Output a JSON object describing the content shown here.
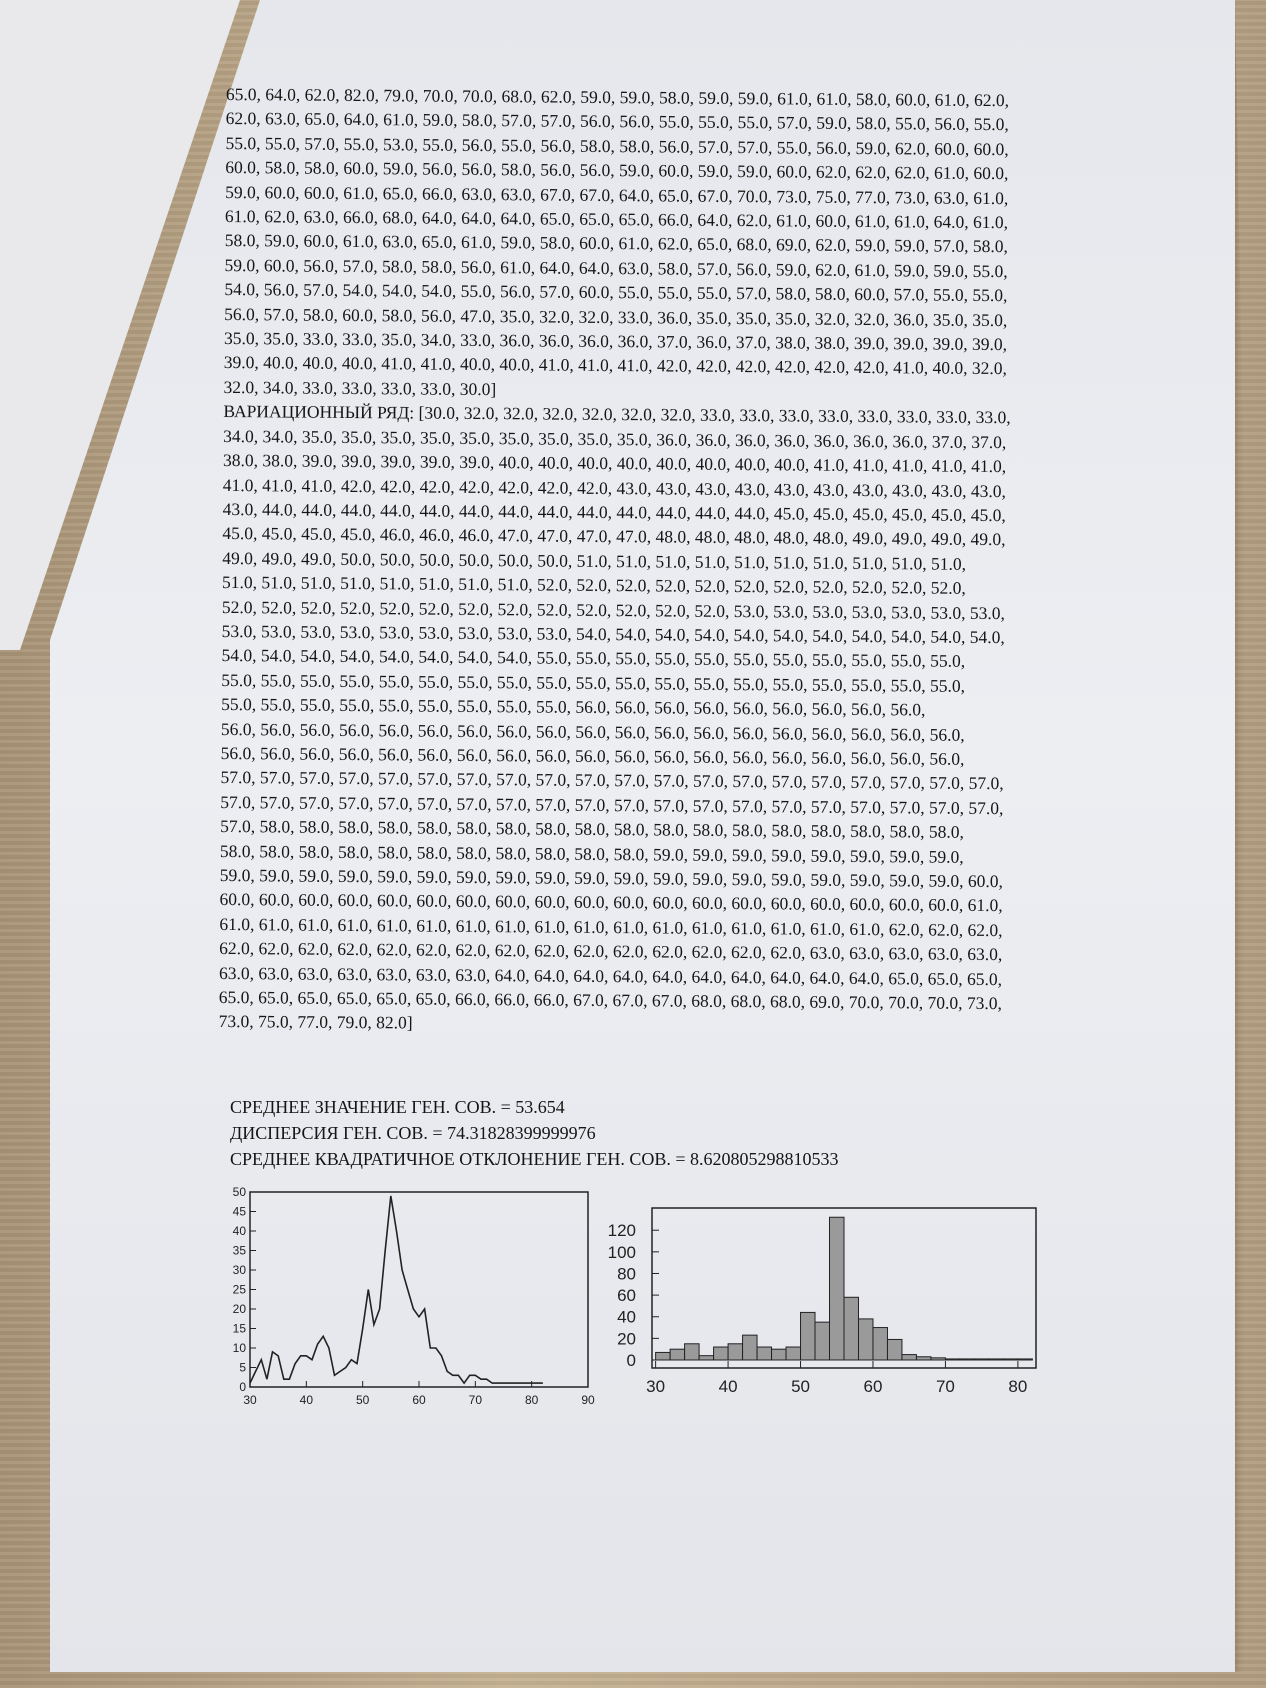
{
  "document": {
    "lines": [
      "65.0, 64.0, 62.0, 82.0, 79.0, 70.0, 70.0, 68.0, 62.0, 59.0, 59.0, 58.0, 59.0, 59.0, 61.0, 61.0, 58.0, 60.0, 61.0, 62.0,",
      "62.0, 63.0, 65.0, 64.0, 61.0, 59.0, 58.0, 57.0, 57.0, 56.0, 56.0, 55.0, 55.0, 55.0, 57.0, 59.0, 58.0, 55.0, 56.0, 55.0,",
      "55.0, 55.0, 57.0, 55.0, 53.0, 55.0, 56.0, 55.0, 56.0, 58.0, 58.0, 56.0, 57.0, 57.0, 55.0, 56.0, 59.0, 62.0, 60.0, 60.0,",
      "60.0, 58.0, 58.0, 60.0, 59.0, 56.0, 56.0, 58.0, 56.0, 56.0, 59.0, 60.0, 59.0, 59.0, 60.0, 62.0, 62.0, 62.0, 61.0, 60.0,",
      "59.0, 60.0, 60.0, 61.0, 65.0, 66.0, 63.0, 63.0, 67.0, 67.0, 64.0, 65.0, 67.0, 70.0, 73.0, 75.0, 77.0, 73.0, 63.0, 61.0,",
      "61.0, 62.0, 63.0, 66.0, 68.0, 64.0, 64.0, 64.0, 65.0, 65.0, 65.0, 66.0, 64.0, 62.0, 61.0, 60.0, 61.0, 61.0, 64.0, 61.0,",
      "58.0, 59.0, 60.0, 61.0, 63.0, 65.0, 61.0, 59.0, 58.0, 60.0, 61.0, 62.0, 65.0, 68.0, 69.0, 62.0, 59.0, 59.0, 57.0, 58.0,",
      "59.0, 60.0, 56.0, 57.0, 58.0, 58.0, 56.0, 61.0, 64.0, 64.0, 63.0, 58.0, 57.0, 56.0, 59.0, 62.0, 61.0, 59.0, 59.0, 55.0,",
      "54.0, 56.0, 57.0, 54.0, 54.0, 54.0, 55.0, 56.0, 57.0, 60.0, 55.0, 55.0, 55.0, 57.0, 58.0, 58.0, 60.0, 57.0, 55.0, 55.0,",
      "56.0, 57.0, 58.0, 60.0, 58.0, 56.0, 47.0, 35.0, 32.0, 32.0, 33.0, 36.0, 35.0, 35.0, 35.0, 32.0, 32.0, 36.0, 35.0, 35.0,",
      "35.0, 35.0, 33.0, 33.0, 35.0, 34.0, 33.0, 36.0, 36.0, 36.0, 36.0, 37.0, 36.0, 37.0, 38.0, 38.0, 39.0, 39.0, 39.0, 39.0,",
      "39.0, 40.0, 40.0, 40.0, 41.0, 41.0, 40.0, 40.0, 41.0, 41.0, 41.0, 42.0, 42.0, 42.0, 42.0, 42.0, 42.0, 41.0, 40.0, 32.0,",
      "32.0, 34.0, 33.0, 33.0, 33.0, 33.0, 30.0]",
      "ВАРИАЦИОННЫЙ РЯД: [30.0, 32.0, 32.0, 32.0, 32.0, 32.0, 32.0, 33.0, 33.0, 33.0, 33.0, 33.0, 33.0, 33.0, 33.0,",
      "34.0, 34.0, 35.0, 35.0, 35.0, 35.0, 35.0, 35.0, 35.0, 35.0, 35.0, 36.0, 36.0, 36.0, 36.0, 36.0, 36.0, 36.0, 37.0, 37.0,",
      "38.0, 38.0, 39.0, 39.0, 39.0, 39.0, 39.0, 40.0, 40.0, 40.0, 40.0, 40.0, 40.0, 40.0, 40.0, 41.0, 41.0, 41.0, 41.0, 41.0,",
      "41.0, 41.0, 41.0, 42.0, 42.0, 42.0, 42.0, 42.0, 42.0, 42.0, 43.0, 43.0, 43.0, 43.0, 43.0, 43.0, 43.0, 43.0, 43.0, 43.0,",
      "43.0, 44.0, 44.0, 44.0, 44.0, 44.0, 44.0, 44.0, 44.0, 44.0, 44.0, 44.0, 44.0, 44.0, 45.0, 45.0, 45.0, 45.0, 45.0, 45.0,",
      "45.0, 45.0, 45.0, 45.0, 46.0, 46.0, 46.0, 47.0, 47.0, 47.0, 47.0, 48.0, 48.0, 48.0, 48.0, 48.0, 49.0, 49.0, 49.0, 49.0,",
      "49.0, 49.0, 49.0, 50.0, 50.0, 50.0, 50.0, 50.0, 50.0, 51.0, 51.0, 51.0, 51.0, 51.0, 51.0, 51.0, 51.0, 51.0, 51.0,",
      "51.0, 51.0, 51.0, 51.0, 51.0, 51.0, 51.0, 51.0, 52.0, 52.0, 52.0, 52.0, 52.0, 52.0, 52.0, 52.0, 52.0, 52.0, 52.0,",
      "52.0, 52.0, 52.0, 52.0, 52.0, 52.0, 52.0, 52.0, 52.0, 52.0, 52.0, 52.0, 52.0, 53.0, 53.0, 53.0, 53.0, 53.0, 53.0, 53.0,",
      "53.0, 53.0, 53.0, 53.0, 53.0, 53.0, 53.0, 53.0, 53.0, 54.0, 54.0, 54.0, 54.0, 54.0, 54.0, 54.0, 54.0, 54.0, 54.0, 54.0,",
      "54.0, 54.0, 54.0, 54.0, 54.0, 54.0, 54.0, 54.0, 55.0, 55.0, 55.0, 55.0, 55.0, 55.0, 55.0, 55.0, 55.0, 55.0, 55.0,",
      "55.0, 55.0, 55.0, 55.0, 55.0, 55.0, 55.0, 55.0, 55.0, 55.0, 55.0, 55.0, 55.0, 55.0, 55.0, 55.0, 55.0, 55.0, 55.0,",
      "55.0, 55.0, 55.0, 55.0, 55.0, 55.0, 55.0, 55.0, 55.0, 56.0, 56.0, 56.0, 56.0, 56.0, 56.0, 56.0, 56.0, 56.0,",
      "56.0, 56.0, 56.0, 56.0, 56.0, 56.0, 56.0, 56.0, 56.0, 56.0, 56.0, 56.0, 56.0, 56.0, 56.0, 56.0, 56.0, 56.0, 56.0,",
      "56.0, 56.0, 56.0, 56.0, 56.0, 56.0, 56.0, 56.0, 56.0, 56.0, 56.0, 56.0, 56.0, 56.0, 56.0, 56.0, 56.0, 56.0, 56.0,",
      "57.0, 57.0, 57.0, 57.0, 57.0, 57.0, 57.0, 57.0, 57.0, 57.0, 57.0, 57.0, 57.0, 57.0, 57.0, 57.0, 57.0, 57.0, 57.0, 57.0,",
      "57.0, 57.0, 57.0, 57.0, 57.0, 57.0, 57.0, 57.0, 57.0, 57.0, 57.0, 57.0, 57.0, 57.0, 57.0, 57.0, 57.0, 57.0, 57.0, 57.0,",
      "57.0, 58.0, 58.0, 58.0, 58.0, 58.0, 58.0, 58.0, 58.0, 58.0, 58.0, 58.0, 58.0, 58.0, 58.0, 58.0, 58.0, 58.0, 58.0,",
      "58.0, 58.0, 58.0, 58.0, 58.0, 58.0, 58.0, 58.0, 58.0, 58.0, 58.0, 59.0, 59.0, 59.0, 59.0, 59.0, 59.0, 59.0, 59.0,",
      "59.0, 59.0, 59.0, 59.0, 59.0, 59.0, 59.0, 59.0, 59.0, 59.0, 59.0, 59.0, 59.0, 59.0, 59.0, 59.0, 59.0, 59.0, 59.0, 60.0,",
      "60.0, 60.0, 60.0, 60.0, 60.0, 60.0, 60.0, 60.0, 60.0, 60.0, 60.0, 60.0, 60.0, 60.0, 60.0, 60.0, 60.0, 60.0, 60.0, 61.0,",
      "61.0, 61.0, 61.0, 61.0, 61.0, 61.0, 61.0, 61.0, 61.0, 61.0, 61.0, 61.0, 61.0, 61.0, 61.0, 61.0, 61.0, 62.0, 62.0, 62.0,",
      "62.0, 62.0, 62.0, 62.0, 62.0, 62.0, 62.0, 62.0, 62.0, 62.0, 62.0, 62.0, 62.0, 62.0, 62.0, 63.0, 63.0, 63.0, 63.0, 63.0,",
      "63.0, 63.0, 63.0, 63.0, 63.0, 63.0, 63.0, 64.0, 64.0, 64.0, 64.0, 64.0, 64.0, 64.0, 64.0, 64.0, 64.0, 65.0, 65.0, 65.0,",
      "65.0, 65.0, 65.0, 65.0, 65.0, 65.0, 66.0, 66.0, 66.0, 67.0, 67.0, 67.0, 68.0, 68.0, 68.0, 69.0, 70.0, 70.0, 70.0, 73.0,",
      "73.0, 75.0, 77.0, 79.0, 82.0]"
    ],
    "mean": "СРЕДНЕЕ ЗНАЧЕНИЕ ГЕН. СОВ. = 53.654",
    "variance": "ДИСПЕРСИЯ ГЕН. СОВ. = 74.31828399999976",
    "std": "СРЕДНЕЕ КВАДРАТИЧНОЕ ОТКЛОНЕНИЕ ГЕН. СОВ. = 8.620805298810533"
  },
  "chart_data": [
    {
      "type": "line",
      "title": "",
      "xlabel": "",
      "ylabel": "",
      "xlim": [
        30,
        90
      ],
      "ylim": [
        0,
        50
      ],
      "x_ticks": [
        30,
        40,
        50,
        60,
        70,
        80,
        90
      ],
      "y_ticks": [
        0,
        5,
        10,
        15,
        20,
        25,
        30,
        35,
        40,
        45,
        50
      ],
      "x": [
        30,
        31,
        32,
        33,
        34,
        35,
        36,
        37,
        38,
        39,
        40,
        41,
        42,
        43,
        44,
        45,
        46,
        47,
        48,
        49,
        50,
        51,
        52,
        53,
        54,
        55,
        56,
        57,
        58,
        59,
        60,
        61,
        62,
        63,
        64,
        65,
        66,
        67,
        68,
        69,
        70,
        71,
        72,
        73,
        74,
        75,
        76,
        77,
        78,
        79,
        80,
        81,
        82
      ],
      "y": [
        1,
        4,
        7,
        2,
        9,
        8,
        2,
        2,
        6,
        8,
        8,
        7,
        11,
        13,
        10,
        3,
        4,
        5,
        7,
        6,
        15,
        25,
        16,
        20,
        35,
        49,
        40,
        30,
        25,
        20,
        18,
        20,
        10,
        10,
        8,
        4,
        3,
        3,
        1,
        3,
        3,
        2,
        2,
        1,
        1,
        1,
        1,
        1,
        1,
        1,
        1,
        1,
        1
      ]
    },
    {
      "type": "bar",
      "title": "",
      "xlabel": "",
      "ylabel": "",
      "xlim": [
        29.5,
        82.5
      ],
      "ylim": [
        0,
        135
      ],
      "x_ticks": [
        30,
        40,
        50,
        60,
        70,
        80
      ],
      "y_ticks": [
        0,
        20,
        40,
        60,
        80,
        100,
        120
      ],
      "bin_edges": [
        30,
        32,
        34,
        36,
        38,
        40,
        42,
        44,
        46,
        48,
        50,
        52,
        54,
        56,
        58,
        60,
        62,
        64,
        66,
        68,
        70,
        72,
        74,
        76,
        78,
        80,
        82
      ],
      "values": [
        7,
        10,
        15,
        4,
        12,
        15,
        23,
        12,
        10,
        12,
        44,
        35,
        132,
        58,
        38,
        30,
        19,
        5,
        3,
        2,
        1,
        1,
        1,
        1,
        1,
        1
      ],
      "color": "#9a9a9a"
    }
  ]
}
